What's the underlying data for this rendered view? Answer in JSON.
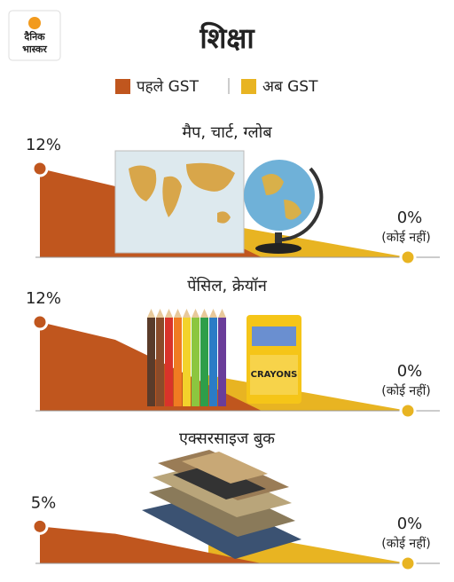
{
  "header": {
    "logo_line1": "दैनिक",
    "logo_line2": "भास्कर",
    "title": "शिक्षा"
  },
  "legend": [
    {
      "name": "पहले GST",
      "color": "#c0561e"
    },
    {
      "name": "अब GST",
      "color": "#e8b422"
    }
  ],
  "chart_data": [
    {
      "type": "slope",
      "title": "मैप, चार्ट, ग्लोब",
      "values": [
        12,
        0
      ],
      "value_labels": [
        "12%",
        "0%"
      ],
      "annotation": "(कोई नहीं)",
      "ylim": [
        0,
        12
      ]
    },
    {
      "type": "slope",
      "title": "पेंसिल, क्रेयॉन",
      "values": [
        12,
        0
      ],
      "value_labels": [
        "12%",
        "0%"
      ],
      "annotation": "(कोई नहीं)",
      "ylim": [
        0,
        12
      ],
      "image_text": "CRAYONS"
    },
    {
      "type": "slope",
      "title": "एक्सरसाइज बुक",
      "values": [
        5,
        0
      ],
      "value_labels": [
        "5%",
        "0%"
      ],
      "annotation": "(कोई नहीं)",
      "ylim": [
        0,
        12
      ]
    }
  ]
}
